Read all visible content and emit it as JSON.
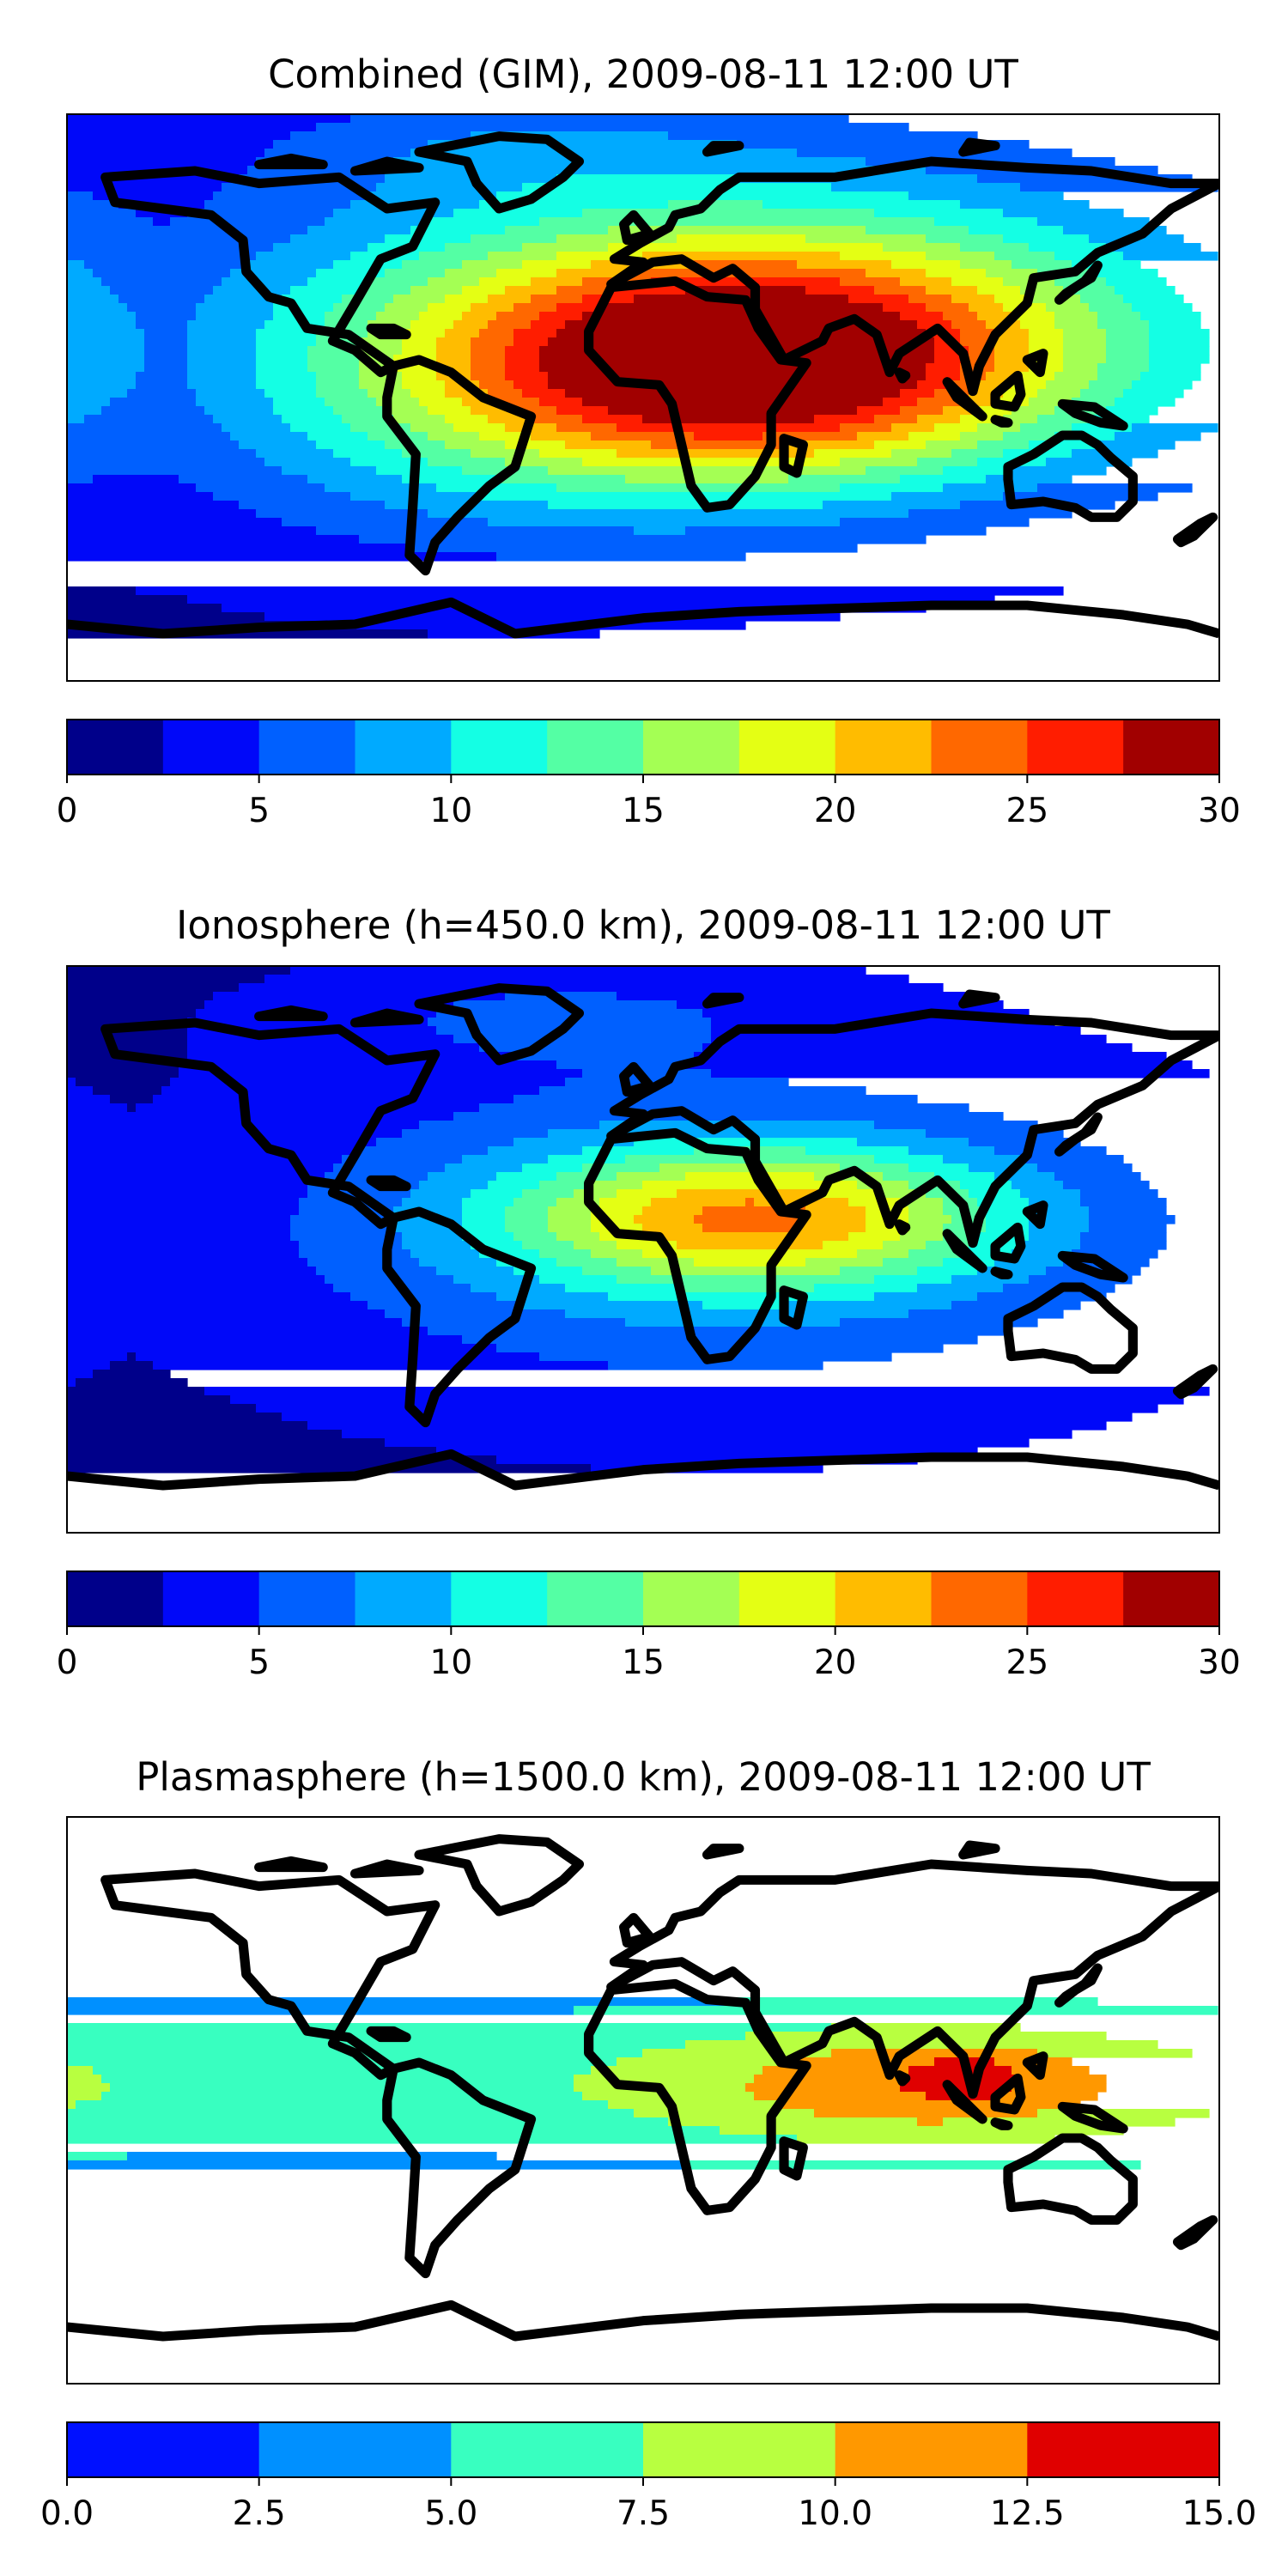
{
  "chart_data": [
    {
      "type": "heatmap",
      "title": "Combined (GIM), 2009-08-11 12:00 UT",
      "colorbar": {
        "range": [
          0,
          30
        ],
        "levels": [
          0,
          2.5,
          5,
          7.5,
          10,
          12.5,
          15,
          17.5,
          20,
          22.5,
          25,
          27.5,
          30
        ],
        "colors": [
          "#00008a",
          "#0008f9",
          "#0060ff",
          "#00aaff",
          "#14ffe4",
          "#54ffa4",
          "#a4ff54",
          "#e4ff14",
          "#ffbc00",
          "#ff6800",
          "#ff1d00",
          "#a10000"
        ],
        "tick_labels": [
          "0",
          "5",
          "10",
          "15",
          "20",
          "25",
          "30"
        ],
        "tick_values": [
          0,
          5,
          10,
          15,
          20,
          25,
          30
        ]
      },
      "field": {
        "background": 2,
        "blobs": [
          {
            "lon": 35,
            "lat": 10,
            "value": 24,
            "sx": 70,
            "sy": 26
          },
          {
            "lon": 30,
            "lat": 30,
            "value": 10,
            "sx": 120,
            "sy": 35
          },
          {
            "lon": -60,
            "lat": -10,
            "value": 4,
            "sx": 70,
            "sy": 30
          },
          {
            "lon": -40,
            "lat": 80,
            "value": 3,
            "sx": 55,
            "sy": 12
          }
        ]
      }
    },
    {
      "type": "heatmap",
      "title": "Ionosphere  (h=450.0 km), 2009-08-11 12:00 UT",
      "colorbar": {
        "range": [
          0,
          30
        ],
        "levels": [
          0,
          2.5,
          5,
          7.5,
          10,
          12.5,
          15,
          17.5,
          20,
          22.5,
          25,
          27.5,
          30
        ],
        "colors": [
          "#00008a",
          "#0008f9",
          "#0060ff",
          "#00aaff",
          "#14ffe4",
          "#54ffa4",
          "#a4ff54",
          "#e4ff14",
          "#ffbc00",
          "#ff6800",
          "#ff1d00",
          "#a10000"
        ],
        "tick_labels": [
          "0",
          "5",
          "10",
          "15",
          "20",
          "25",
          "30"
        ],
        "tick_values": [
          0,
          5,
          10,
          15,
          20,
          25,
          30
        ]
      },
      "field": {
        "background": 1.5,
        "blobs": [
          {
            "lon": 35,
            "lat": 10,
            "value": 16,
            "sx": 55,
            "sy": 16
          },
          {
            "lon": 20,
            "lat": 5,
            "value": 6,
            "sx": 110,
            "sy": 40
          },
          {
            "lon": -30,
            "lat": 75,
            "value": 3,
            "sx": 60,
            "sy": 12
          }
        ]
      }
    },
    {
      "type": "heatmap",
      "title": "Plasmasphere (h=1500.0 km), 2009-08-11 12:00 UT",
      "colorbar": {
        "range": [
          0,
          15
        ],
        "levels": [
          0,
          2.5,
          5,
          7.5,
          10,
          12.5,
          15
        ],
        "colors": [
          "#0010ff",
          "#0090ff",
          "#38ffc0",
          "#b8ff40",
          "#ff9800",
          "#e00000"
        ],
        "tick_labels": [
          "0.0",
          "2.5",
          "5.0",
          "7.5",
          "10.0",
          "12.5",
          "15.0"
        ],
        "tick_values": [
          0,
          2.5,
          5,
          7.5,
          10,
          12.5,
          15
        ]
      },
      "field": {
        "background": 2,
        "blobs": [
          {
            "lon": 0,
            "lat": 5,
            "value": 4.8,
            "sx": 500,
            "sy": 23
          },
          {
            "lon": 90,
            "lat": 5,
            "value": 5.5,
            "sx": 55,
            "sy": 14
          },
          {
            "lon": 102,
            "lat": 8,
            "value": 2.5,
            "sx": 12,
            "sy": 5
          }
        ]
      }
    }
  ]
}
